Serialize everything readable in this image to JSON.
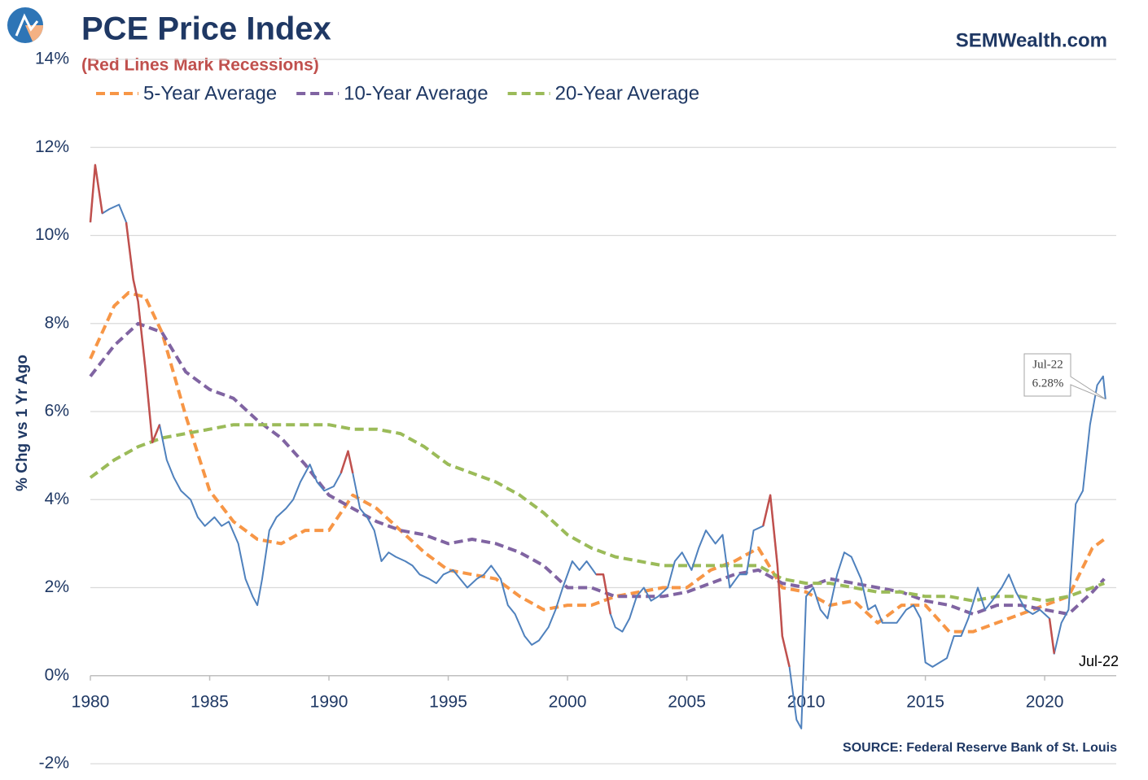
{
  "chart_data": {
    "type": "line",
    "title": "PCE Price Index",
    "subtitle": "(Red Lines Mark Recessions)",
    "brand": "SEMWealth.com",
    "source": "SOURCE:  Federal Reserve Bank of St. Louis",
    "y_label": "% Chg vs 1 Yr Ago",
    "annotations": [
      "Jul-22",
      "6.28%",
      "Jul-22"
    ],
    "xlim": [
      1980,
      2023
    ],
    "xticks": [
      1980,
      1985,
      1990,
      1995,
      2000,
      2005,
      2010,
      2015,
      2020
    ],
    "ylim": [
      -2,
      14
    ],
    "yticks": [
      {
        "value": -2,
        "label": "-2%"
      },
      {
        "value": 0,
        "label": "0%"
      },
      {
        "value": 2,
        "label": "2%"
      },
      {
        "value": 4,
        "label": "4%"
      },
      {
        "value": 6,
        "label": "6%"
      },
      {
        "value": 8,
        "label": "8%"
      },
      {
        "value": 10,
        "label": "10%"
      },
      {
        "value": 12,
        "label": "12%"
      },
      {
        "value": 14,
        "label": "14%"
      }
    ],
    "grid": true,
    "recession_color": "#c0504d",
    "recessions": [
      [
        1980.0,
        1980.6
      ],
      [
        1981.5,
        1982.9
      ],
      [
        1990.5,
        1991.2
      ],
      [
        2001.2,
        2001.9
      ],
      [
        2007.9,
        2009.5
      ],
      [
        2020.1,
        2020.4
      ]
    ],
    "series": [
      {
        "color": "#4f81bd",
        "dashed": false,
        "x": [
          1980.0,
          1980.2,
          1980.5,
          1980.8,
          1981.2,
          1981.5,
          1981.8,
          1982.0,
          1982.3,
          1982.6,
          1982.9,
          1983.2,
          1983.5,
          1983.8,
          1984.2,
          1984.5,
          1984.8,
          1985.2,
          1985.5,
          1985.8,
          1986.2,
          1986.5,
          1986.8,
          1987.0,
          1987.2,
          1987.5,
          1987.8,
          1988.2,
          1988.5,
          1988.8,
          1989.2,
          1989.5,
          1989.8,
          1990.2,
          1990.5,
          1990.8,
          1991.0,
          1991.3,
          1991.6,
          1991.9,
          1992.2,
          1992.5,
          1992.8,
          1993.2,
          1993.5,
          1993.8,
          1994.2,
          1994.5,
          1994.8,
          1995.2,
          1995.5,
          1995.8,
          1996.2,
          1996.5,
          1996.8,
          1997.2,
          1997.5,
          1997.8,
          1998.2,
          1998.5,
          1998.8,
          1999.2,
          1999.5,
          1999.8,
          2000.2,
          2000.5,
          2000.8,
          2001.2,
          2001.5,
          2001.8,
          2002.0,
          2002.3,
          2002.6,
          2002.9,
          2003.2,
          2003.5,
          2003.8,
          2004.2,
          2004.5,
          2004.8,
          2005.2,
          2005.5,
          2005.8,
          2006.2,
          2006.5,
          2006.8,
          2007.2,
          2007.5,
          2007.8,
          2008.2,
          2008.5,
          2008.8,
          2009.0,
          2009.3,
          2009.6,
          2009.8,
          2010.0,
          2010.3,
          2010.6,
          2010.9,
          2011.3,
          2011.6,
          2011.9,
          2012.3,
          2012.6,
          2012.9,
          2013.2,
          2013.5,
          2013.8,
          2014.2,
          2014.5,
          2014.8,
          2015.0,
          2015.3,
          2015.6,
          2015.9,
          2016.2,
          2016.5,
          2016.8,
          2017.2,
          2017.5,
          2017.8,
          2018.2,
          2018.5,
          2018.8,
          2019.2,
          2019.5,
          2019.8,
          2020.2,
          2020.4,
          2020.7,
          2021.0,
          2021.3,
          2021.6,
          2021.9,
          2022.2,
          2022.45,
          2022.55
        ],
        "values": [
          10.3,
          11.6,
          10.5,
          10.6,
          10.7,
          10.3,
          9.0,
          8.5,
          7.0,
          5.3,
          5.7,
          4.9,
          4.5,
          4.2,
          4.0,
          3.6,
          3.4,
          3.6,
          3.4,
          3.5,
          3.0,
          2.2,
          1.8,
          1.6,
          2.2,
          3.3,
          3.6,
          3.8,
          4.0,
          4.4,
          4.8,
          4.4,
          4.2,
          4.3,
          4.6,
          5.1,
          4.6,
          3.8,
          3.6,
          3.3,
          2.6,
          2.8,
          2.7,
          2.6,
          2.5,
          2.3,
          2.2,
          2.1,
          2.3,
          2.4,
          2.2,
          2.0,
          2.2,
          2.3,
          2.5,
          2.2,
          1.6,
          1.4,
          0.9,
          0.7,
          0.8,
          1.1,
          1.5,
          2.0,
          2.6,
          2.4,
          2.6,
          2.3,
          2.3,
          1.4,
          1.1,
          1.0,
          1.3,
          1.8,
          2.0,
          1.7,
          1.8,
          2.0,
          2.6,
          2.8,
          2.4,
          2.9,
          3.3,
          3.0,
          3.2,
          2.0,
          2.3,
          2.3,
          3.3,
          3.4,
          4.1,
          2.5,
          0.9,
          0.2,
          -1.0,
          -1.2,
          1.8,
          2.0,
          1.5,
          1.3,
          2.3,
          2.8,
          2.7,
          2.2,
          1.5,
          1.6,
          1.2,
          1.2,
          1.2,
          1.5,
          1.6,
          1.3,
          0.3,
          0.2,
          0.3,
          0.4,
          0.9,
          0.9,
          1.3,
          2.0,
          1.5,
          1.7,
          2.0,
          2.3,
          1.9,
          1.5,
          1.4,
          1.5,
          1.3,
          0.5,
          1.2,
          1.5,
          3.9,
          4.2,
          5.7,
          6.6,
          6.8,
          6.28
        ]
      },
      {
        "name": "5-Year Average",
        "color": "#f79646",
        "dashed": true,
        "x": [
          1980,
          1981,
          1981.6,
          1982.3,
          1983,
          1984,
          1985,
          1986,
          1987,
          1988,
          1989,
          1990,
          1991,
          1992,
          1993,
          1994,
          1995,
          1996,
          1997,
          1998,
          1999,
          2000,
          2001,
          2002,
          2003,
          2004,
          2005,
          2006,
          2007,
          2008,
          2009,
          2010,
          2011,
          2012,
          2013,
          2014,
          2015,
          2016,
          2017,
          2018,
          2019,
          2020,
          2021,
          2022,
          2022.5
        ],
        "values": [
          7.2,
          8.4,
          8.7,
          8.6,
          7.8,
          5.9,
          4.2,
          3.5,
          3.1,
          3.0,
          3.3,
          3.3,
          4.1,
          3.8,
          3.3,
          2.8,
          2.4,
          2.3,
          2.2,
          1.8,
          1.5,
          1.6,
          1.6,
          1.8,
          1.9,
          2.0,
          2.0,
          2.4,
          2.6,
          2.9,
          2.0,
          1.9,
          1.6,
          1.7,
          1.2,
          1.6,
          1.6,
          1.0,
          1.0,
          1.2,
          1.4,
          1.6,
          1.8,
          2.9,
          3.1
        ]
      },
      {
        "name": "10-Year Average",
        "color": "#8064a2",
        "dashed": true,
        "x": [
          1980,
          1981,
          1982,
          1983,
          1984,
          1985,
          1986,
          1987,
          1988,
          1989,
          1990,
          1991,
          1992,
          1993,
          1994,
          1995,
          1996,
          1997,
          1998,
          1999,
          2000,
          2001,
          2002,
          2003,
          2004,
          2005,
          2006,
          2007,
          2008,
          2009,
          2010,
          2011,
          2012,
          2013,
          2014,
          2015,
          2016,
          2017,
          2018,
          2019,
          2020,
          2021,
          2022,
          2022.5
        ],
        "values": [
          6.8,
          7.5,
          8.0,
          7.8,
          6.9,
          6.5,
          6.3,
          5.8,
          5.4,
          4.8,
          4.1,
          3.8,
          3.5,
          3.3,
          3.2,
          3.0,
          3.1,
          3.0,
          2.8,
          2.5,
          2.0,
          2.0,
          1.8,
          1.8,
          1.8,
          1.9,
          2.1,
          2.3,
          2.4,
          2.1,
          2.0,
          2.2,
          2.1,
          2.0,
          1.9,
          1.7,
          1.6,
          1.4,
          1.6,
          1.6,
          1.5,
          1.4,
          1.9,
          2.2
        ]
      },
      {
        "name": "20-Year Average",
        "color": "#9bbb59",
        "dashed": true,
        "x": [
          1980,
          1981,
          1982,
          1983,
          1984,
          1985,
          1986,
          1987,
          1988,
          1989,
          1990,
          1991,
          1992,
          1993,
          1994,
          1995,
          1996,
          1997,
          1998,
          1999,
          2000,
          2001,
          2002,
          2003,
          2004,
          2005,
          2006,
          2007,
          2008,
          2009,
          2010,
          2011,
          2012,
          2013,
          2014,
          2015,
          2016,
          2017,
          2018,
          2019,
          2020,
          2021,
          2022,
          2022.5
        ],
        "values": [
          4.5,
          4.9,
          5.2,
          5.4,
          5.5,
          5.6,
          5.7,
          5.7,
          5.7,
          5.7,
          5.7,
          5.6,
          5.6,
          5.5,
          5.2,
          4.8,
          4.6,
          4.4,
          4.1,
          3.7,
          3.2,
          2.9,
          2.7,
          2.6,
          2.5,
          2.5,
          2.5,
          2.5,
          2.5,
          2.2,
          2.1,
          2.1,
          2.0,
          1.9,
          1.9,
          1.8,
          1.8,
          1.7,
          1.8,
          1.8,
          1.7,
          1.8,
          2.0,
          2.1
        ]
      }
    ]
  }
}
